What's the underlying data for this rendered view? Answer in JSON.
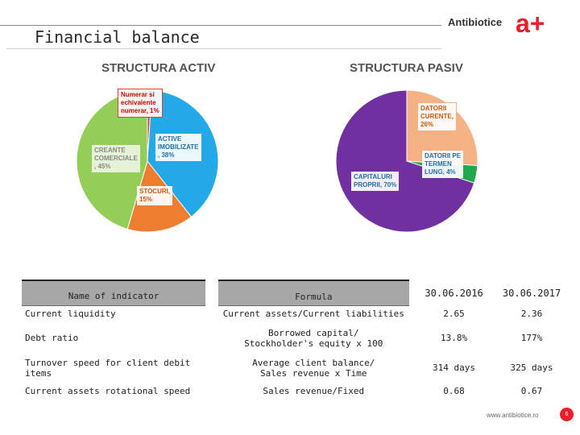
{
  "header": {
    "title": "Financial balance",
    "brand_name": "Antibiotice",
    "logo_text": "a+"
  },
  "assets_chart": {
    "title": "STRUCTURA ACTIV",
    "labels": {
      "cash": [
        "Numerar si",
        "echivalente",
        "numerar, 1%"
      ],
      "fixed": [
        "ACTIVE",
        "IMOBILIZATE",
        ", 38%"
      ],
      "receivables": [
        "CREANTE",
        "COMERCIALE",
        ", 45%"
      ],
      "stocks": [
        "STOCURI,",
        "15%"
      ]
    }
  },
  "liabilities_chart": {
    "title": "STRUCTURA PASIV",
    "labels": {
      "current": [
        "DATORII",
        "CURENTE,",
        "26%"
      ],
      "longterm": [
        "DATORII PE",
        "TERMEN",
        "LUNG, 4%"
      ],
      "equity": [
        "CAPITALURI",
        "PROPRII, 70%"
      ]
    }
  },
  "chart_data": [
    {
      "type": "pie",
      "title": "STRUCTURA ACTIV",
      "slices": [
        {
          "label": "Numerar si echivalente numerar",
          "value": 1,
          "color": "#e04030"
        },
        {
          "label": "ACTIVE IMOBILIZATE",
          "value": 38,
          "color": "#23a8e8"
        },
        {
          "label": "STOCURI",
          "value": 15,
          "color": "#ee7d30"
        },
        {
          "label": "CREANTE COMERCIALE",
          "value": 45,
          "color": "#93cf58"
        }
      ]
    },
    {
      "type": "pie",
      "title": "STRUCTURA PASIV",
      "slices": [
        {
          "label": "DATORII CURENTE",
          "value": 26,
          "color": "#f4b183"
        },
        {
          "label": "DATORII PE TERMEN LUNG",
          "value": 4,
          "color": "#21a84f"
        },
        {
          "label": "CAPITALURI PROPRII",
          "value": 70,
          "color": "#7030a0"
        }
      ]
    }
  ],
  "table": {
    "headers": {
      "name": "Name of indicator",
      "formula": "Formula",
      "col1": "30.06.2016",
      "col2": "30.06.2017"
    },
    "rows": [
      {
        "name": "Current liquidity",
        "formula1": "Current assets/Current liabilities",
        "formula2": "",
        "v1": "2.65",
        "v2": "2.36"
      },
      {
        "name": "Debt ratio",
        "formula1": "Borrowed capital/",
        "formula2": "Stockholder's equity x 100",
        "v1": "13.8%",
        "v2": "177%"
      },
      {
        "name": "Turnover speed for client debit items",
        "formula1": "Average client balance/",
        "formula2": "Sales revenue x Time",
        "v1": "314 days",
        "v2": "325 days"
      },
      {
        "name": "Current assets rotational speed",
        "formula1": "Sales revenue/Fixed",
        "formula2": "",
        "v1": "0.68",
        "v2": "0.67"
      }
    ]
  },
  "footer": {
    "url": "www.antibiotice.ro",
    "page": "6"
  },
  "colors": {
    "accent": "#e8202a",
    "table_header": "#a7a7a7"
  }
}
